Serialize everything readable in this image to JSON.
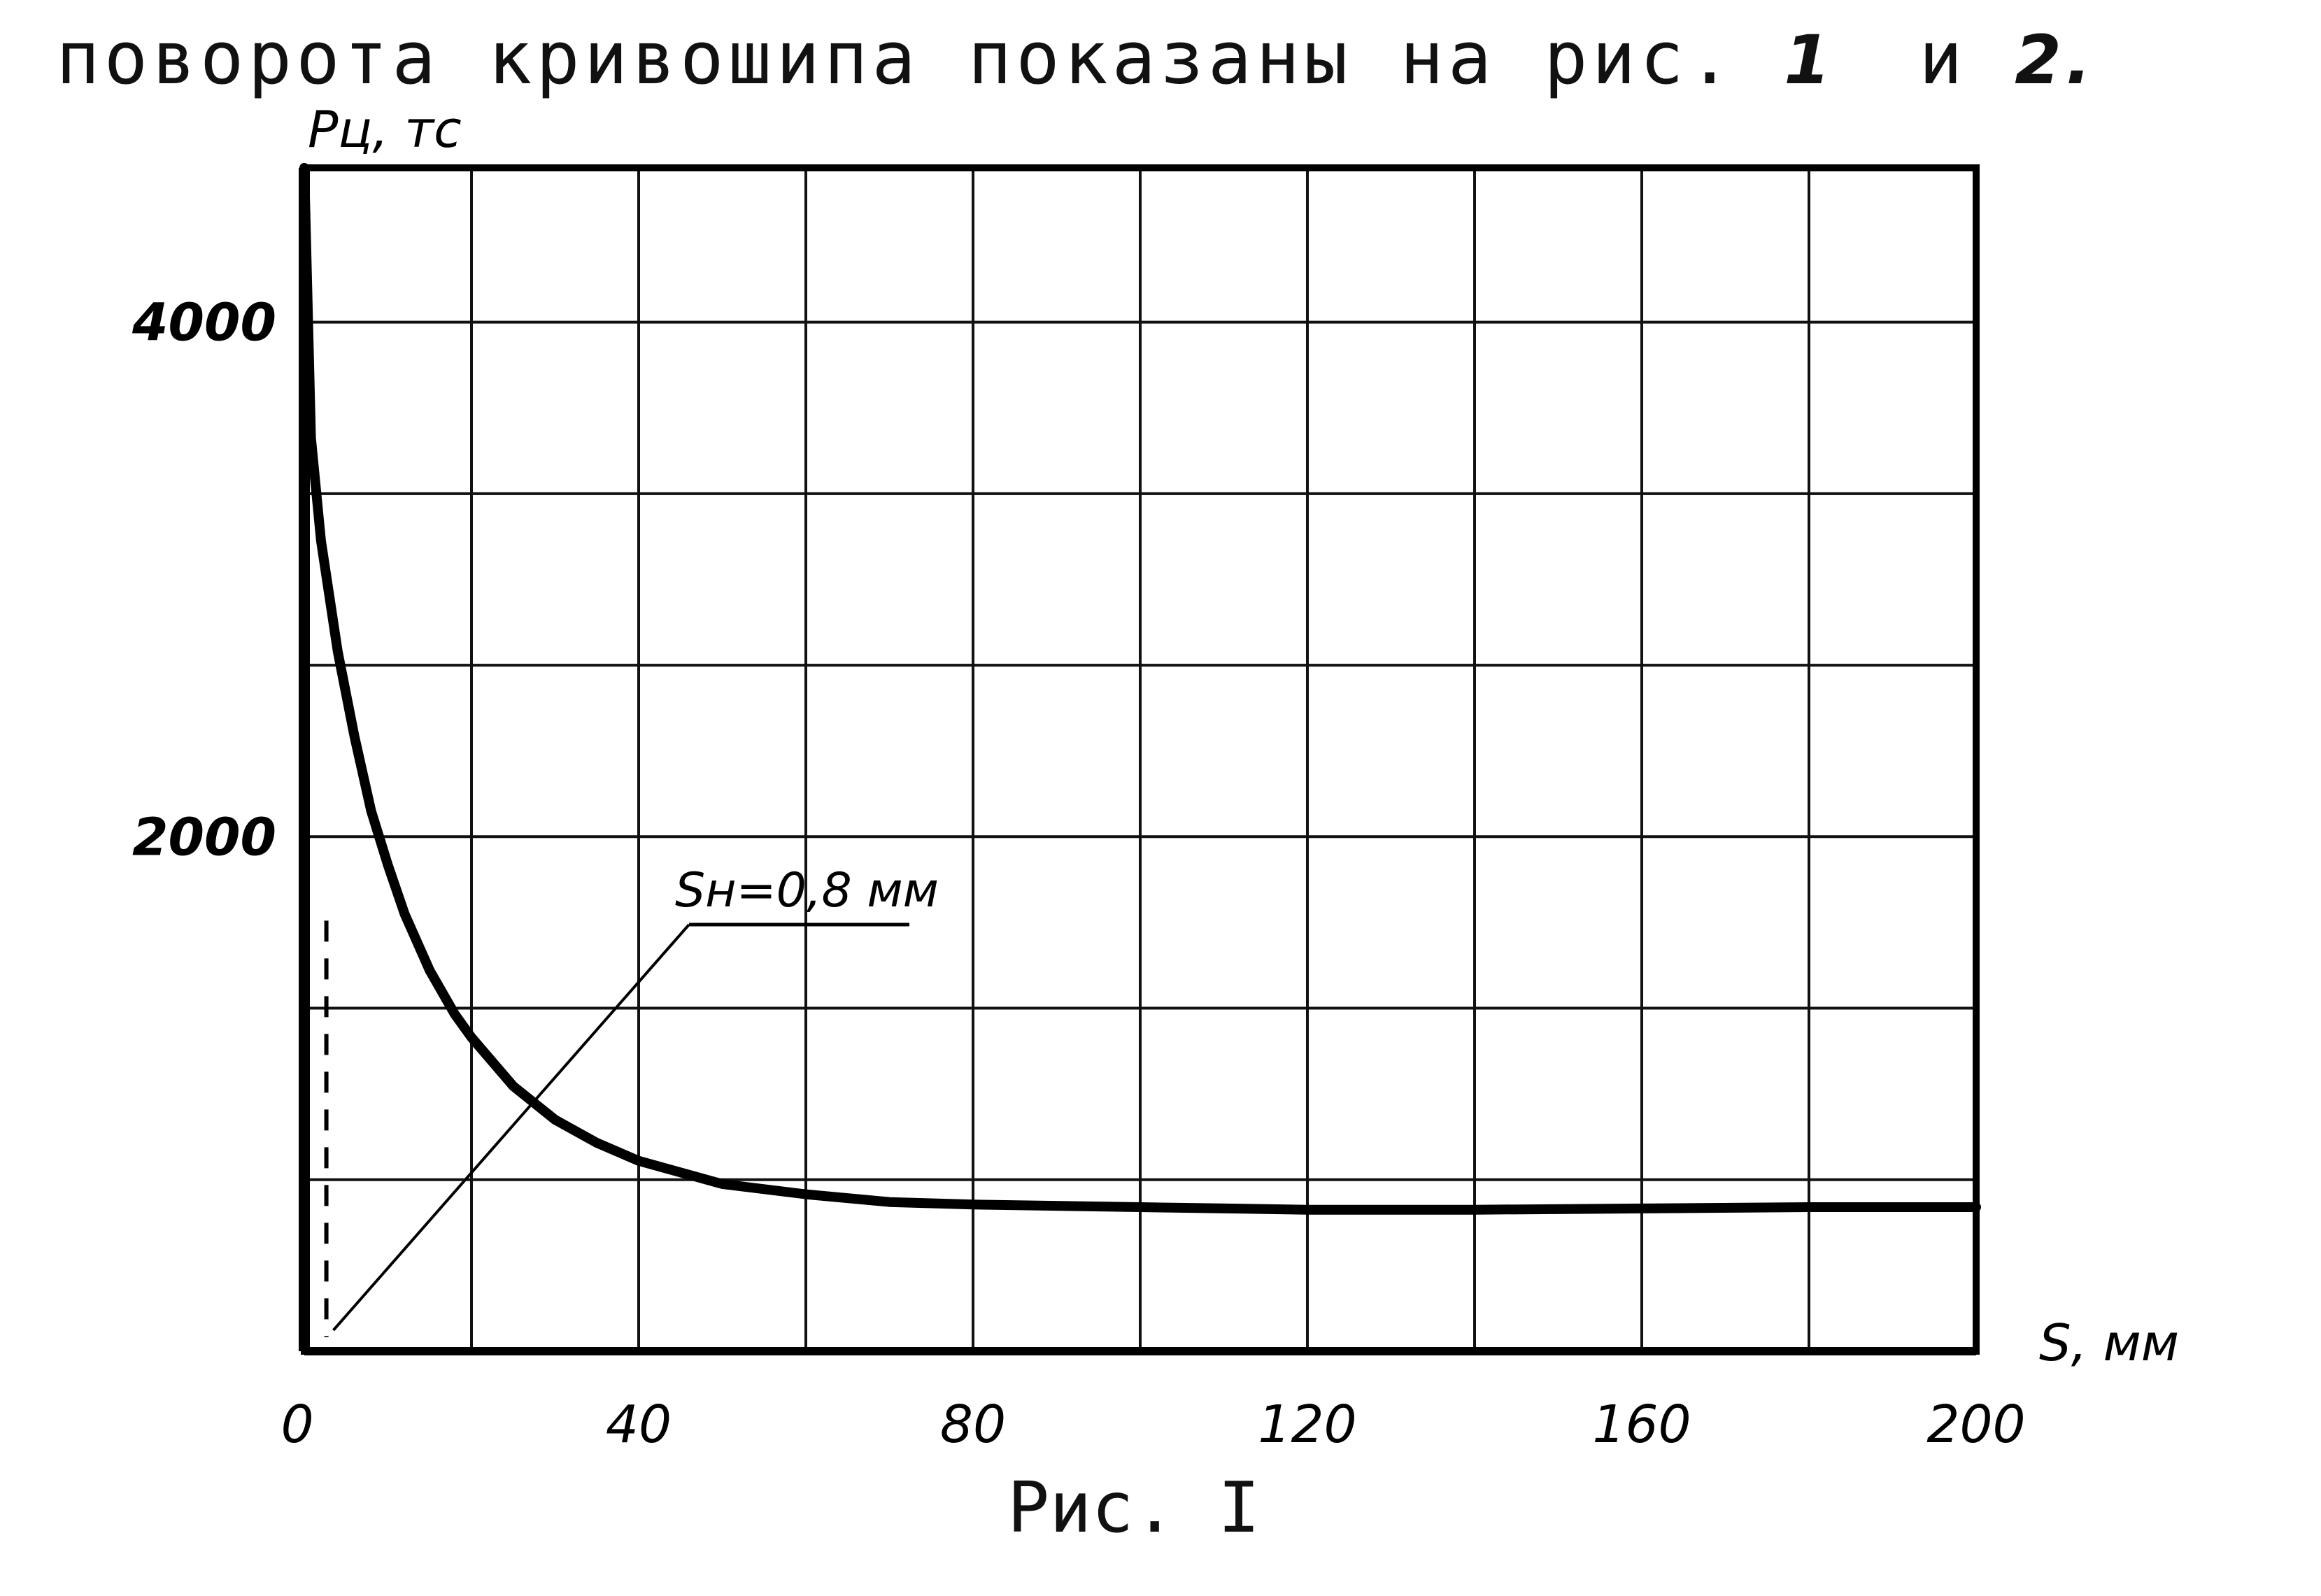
{
  "page": {
    "heading_text": "поворота кривошипа показаны на рис.",
    "heading_ref1": "1",
    "heading_conj": "и",
    "heading_ref2": "2."
  },
  "chart_data": {
    "type": "line",
    "ylabel": "Pц, тс",
    "xlabel": "S, мм",
    "caption": "Рис. I",
    "xlim": [
      0,
      200
    ],
    "ylim": [
      0,
      4600
    ],
    "x_ticks": [
      0,
      40,
      80,
      120,
      160,
      200
    ],
    "y_ticks": [
      2000,
      4000
    ],
    "x_tick_labels": [
      "0",
      "40",
      "80",
      "120",
      "160",
      "200"
    ],
    "y_tick_labels": [
      "2000",
      "4000"
    ],
    "grid": true,
    "grid_x_step": 20,
    "grid_y_step": 666.7,
    "series": [
      {
        "name": "",
        "x": [
          0,
          0.8,
          2,
          4,
          6,
          8,
          10,
          12,
          15,
          18,
          20,
          25,
          30,
          35,
          40,
          50,
          60,
          70,
          80,
          100,
          120,
          140,
          160,
          180,
          200
        ],
        "y": [
          4600,
          3550,
          3150,
          2720,
          2390,
          2100,
          1890,
          1700,
          1480,
          1310,
          1220,
          1030,
          900,
          810,
          740,
          650,
          610,
          580,
          570,
          560,
          550,
          550,
          555,
          560,
          560
        ]
      }
    ],
    "annotation": {
      "text": "Sн=0,8 мм",
      "x": 0.8
    }
  }
}
